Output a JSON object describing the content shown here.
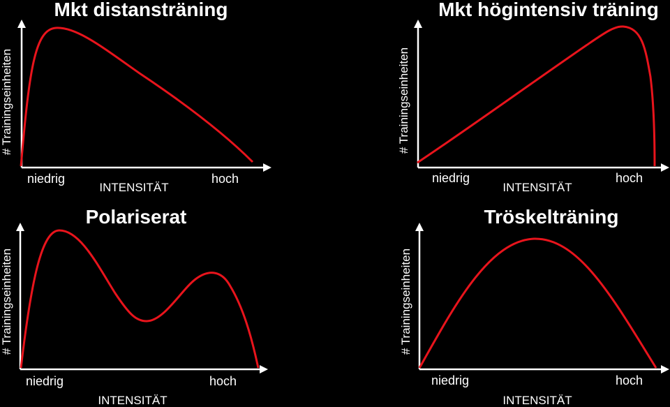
{
  "panels": [
    {
      "title": "Mkt distansträning",
      "y_axis_label": "# Trainingseinheiten",
      "x_low": "niedrig",
      "x_high": "hoch",
      "x_axis_label": "INTENSITÄT"
    },
    {
      "title": "Mkt högintensiv träning",
      "y_axis_label": "# Trainingseinheiten",
      "x_low": "niedrig",
      "x_high": "hoch",
      "x_axis_label": "INTENSITÄT"
    },
    {
      "title": "Polariserat",
      "y_axis_label": "# Trainingseinheiten",
      "x_low": "niedrig",
      "x_high": "hoch",
      "x_axis_label": "INTENSITÄT"
    },
    {
      "title": "Tröskelträning",
      "y_axis_label": "# Trainingseinheiten",
      "x_low": "niedrig",
      "x_high": "hoch",
      "x_axis_label": "INTENSITÄT"
    }
  ],
  "colors": {
    "curve": "#e8141c",
    "axis": "#ffffff",
    "background": "#000000"
  }
}
